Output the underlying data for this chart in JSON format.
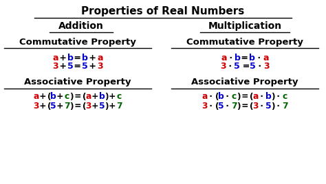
{
  "bg": "#ffffff",
  "K": "#000000",
  "R": "#cc0000",
  "B": "#0000cc",
  "G": "#006600",
  "title": "Properties of Real Numbers",
  "add_head": "Addition",
  "mul_head": "Multiplication",
  "comm": "Commutative Property",
  "assoc": "Associative Property",
  "figw": 4.74,
  "figh": 2.68,
  "dpi": 100
}
